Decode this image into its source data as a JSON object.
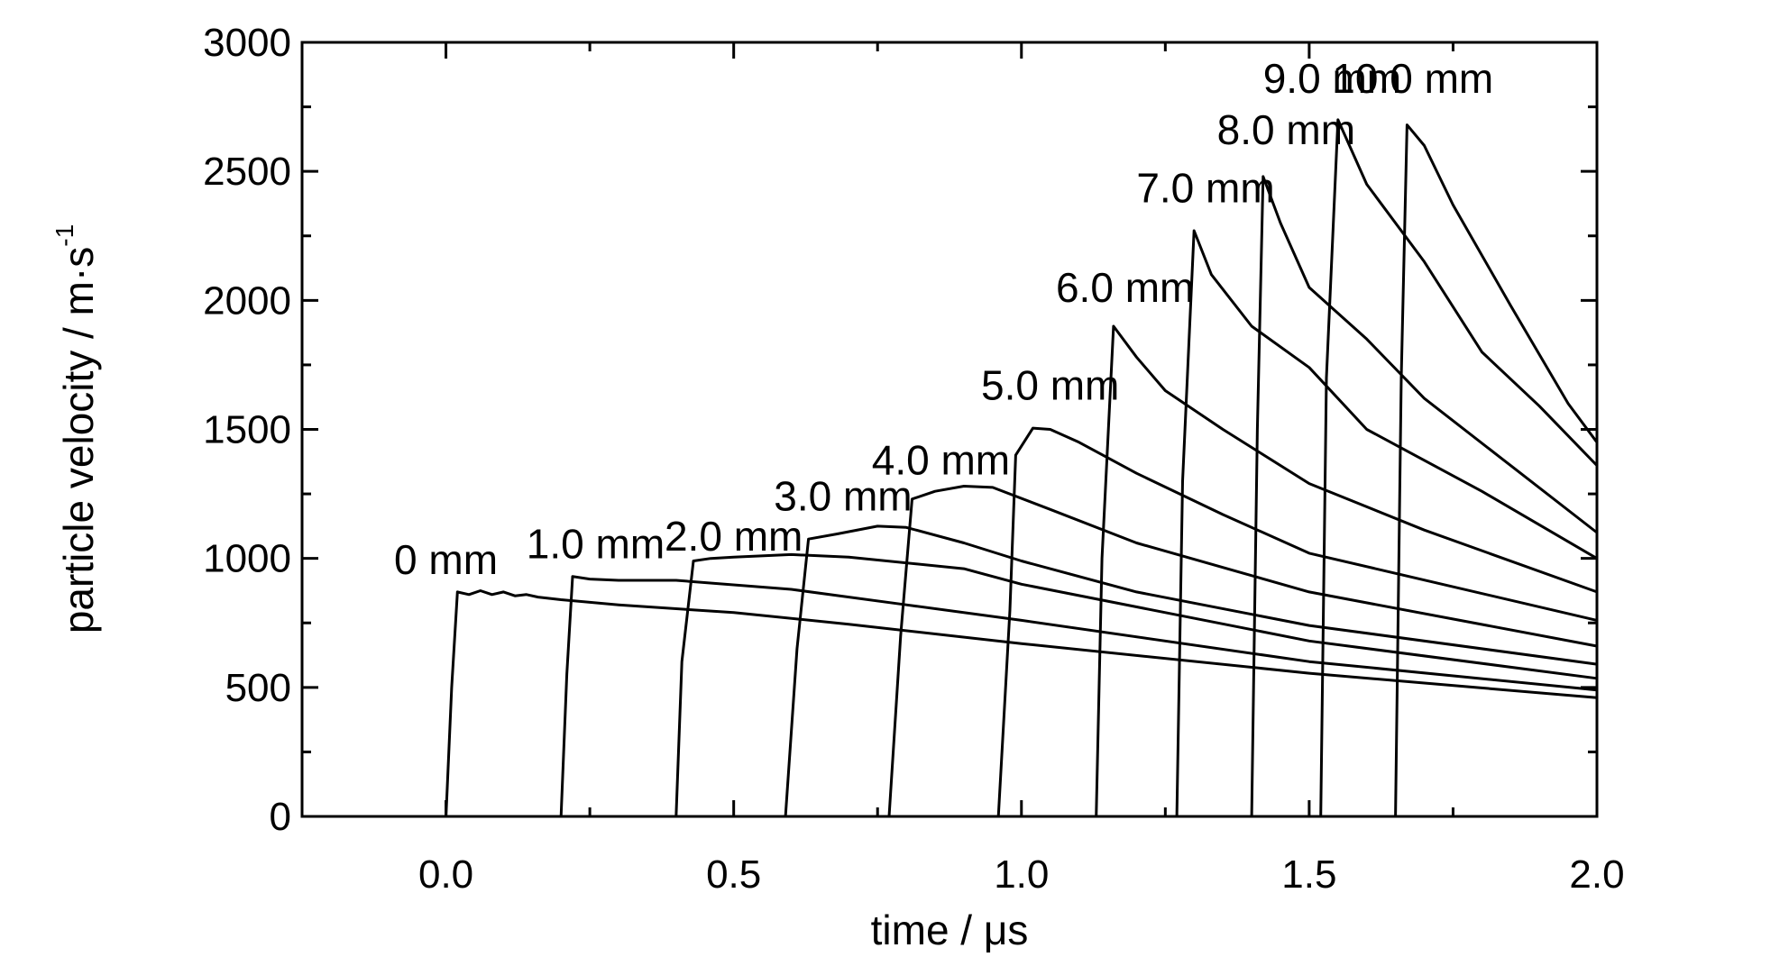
{
  "chart_data": {
    "type": "line",
    "title": "",
    "xlabel": "time / μs",
    "ylabel": "particle velocity / m·s",
    "ylabel_superscript": "-1",
    "xlim": [
      -0.25,
      2.0
    ],
    "ylim": [
      0,
      3000
    ],
    "xticks": [
      0.0,
      0.5,
      1.0,
      1.5,
      2.0
    ],
    "xtick_labels": [
      "0.0",
      "0.5",
      "1.0",
      "1.5",
      "2.0"
    ],
    "yticks": [
      0,
      500,
      1000,
      1500,
      2000,
      2500,
      3000
    ],
    "ytick_labels": [
      "0",
      "500",
      "1000",
      "1500",
      "2000",
      "2500",
      "3000"
    ],
    "grid": false,
    "line_color": "#000000",
    "series": [
      {
        "name": "0 mm",
        "label_at": [
          0.0,
          940
        ],
        "points": [
          [
            -0.25,
            0
          ],
          [
            0.0,
            0
          ],
          [
            0.01,
            500
          ],
          [
            0.02,
            870
          ],
          [
            0.04,
            860
          ],
          [
            0.06,
            875
          ],
          [
            0.08,
            860
          ],
          [
            0.1,
            870
          ],
          [
            0.12,
            855
          ],
          [
            0.14,
            860
          ],
          [
            0.16,
            850
          ],
          [
            0.2,
            840
          ],
          [
            0.3,
            820
          ],
          [
            0.5,
            790
          ],
          [
            0.7,
            745
          ],
          [
            1.0,
            670
          ],
          [
            1.5,
            555
          ],
          [
            2.0,
            460
          ]
        ]
      },
      {
        "name": "1.0 mm",
        "label_at": [
          0.26,
          1000
        ],
        "points": [
          [
            -0.25,
            0
          ],
          [
            0.2,
            0
          ],
          [
            0.21,
            550
          ],
          [
            0.22,
            930
          ],
          [
            0.25,
            920
          ],
          [
            0.3,
            915
          ],
          [
            0.4,
            915
          ],
          [
            0.6,
            880
          ],
          [
            0.8,
            820
          ],
          [
            1.0,
            760
          ],
          [
            1.5,
            600
          ],
          [
            2.0,
            490
          ]
        ]
      },
      {
        "name": "2.0 mm",
        "label_at": [
          0.5,
          1030
        ],
        "points": [
          [
            -0.25,
            0
          ],
          [
            0.4,
            0
          ],
          [
            0.41,
            600
          ],
          [
            0.43,
            990
          ],
          [
            0.46,
            1000
          ],
          [
            0.5,
            1005
          ],
          [
            0.6,
            1015
          ],
          [
            0.7,
            1005
          ],
          [
            0.9,
            960
          ],
          [
            1.0,
            900
          ],
          [
            1.5,
            680
          ],
          [
            2.0,
            535
          ]
        ]
      },
      {
        "name": "3.0 mm",
        "label_at": [
          0.69,
          1185
        ],
        "points": [
          [
            -0.25,
            0
          ],
          [
            0.59,
            0
          ],
          [
            0.61,
            650
          ],
          [
            0.63,
            1075
          ],
          [
            0.68,
            1095
          ],
          [
            0.75,
            1125
          ],
          [
            0.8,
            1120
          ],
          [
            0.9,
            1060
          ],
          [
            1.0,
            990
          ],
          [
            1.2,
            870
          ],
          [
            1.5,
            740
          ],
          [
            2.0,
            590
          ]
        ]
      },
      {
        "name": "4.0 mm",
        "label_at": [
          0.86,
          1325
        ],
        "points": [
          [
            -0.25,
            0
          ],
          [
            0.77,
            0
          ],
          [
            0.79,
            700
          ],
          [
            0.81,
            1230
          ],
          [
            0.85,
            1260
          ],
          [
            0.9,
            1280
          ],
          [
            0.95,
            1275
          ],
          [
            1.05,
            1190
          ],
          [
            1.2,
            1060
          ],
          [
            1.5,
            870
          ],
          [
            2.0,
            660
          ]
        ]
      },
      {
        "name": "5.0 mm",
        "label_at": [
          1.05,
          1615
        ],
        "points": [
          [
            -0.25,
            0
          ],
          [
            0.96,
            0
          ],
          [
            0.98,
            800
          ],
          [
            0.99,
            1400
          ],
          [
            1.02,
            1505
          ],
          [
            1.05,
            1500
          ],
          [
            1.1,
            1450
          ],
          [
            1.2,
            1330
          ],
          [
            1.35,
            1170
          ],
          [
            1.5,
            1020
          ],
          [
            2.0,
            760
          ]
        ]
      },
      {
        "name": "6.0 mm",
        "label_at": [
          1.18,
          1995
        ],
        "points": [
          [
            -0.25,
            0
          ],
          [
            1.13,
            0
          ],
          [
            1.14,
            1000
          ],
          [
            1.16,
            1900
          ],
          [
            1.2,
            1780
          ],
          [
            1.25,
            1650
          ],
          [
            1.35,
            1500
          ],
          [
            1.5,
            1290
          ],
          [
            1.7,
            1110
          ],
          [
            2.0,
            870
          ]
        ]
      },
      {
        "name": "7.0 mm",
        "label_at": [
          1.32,
          2380
        ],
        "points": [
          [
            -0.25,
            0
          ],
          [
            1.27,
            0
          ],
          [
            1.28,
            1300
          ],
          [
            1.3,
            2270
          ],
          [
            1.33,
            2100
          ],
          [
            1.4,
            1900
          ],
          [
            1.5,
            1740
          ],
          [
            1.6,
            1500
          ],
          [
            1.8,
            1260
          ],
          [
            2.0,
            1000
          ]
        ]
      },
      {
        "name": "8.0 mm",
        "label_at": [
          1.46,
          2605
        ],
        "points": [
          [
            -0.25,
            0
          ],
          [
            1.4,
            0
          ],
          [
            1.41,
            1500
          ],
          [
            1.42,
            2480
          ],
          [
            1.45,
            2300
          ],
          [
            1.5,
            2050
          ],
          [
            1.6,
            1850
          ],
          [
            1.7,
            1620
          ],
          [
            1.85,
            1360
          ],
          [
            2.0,
            1100
          ]
        ]
      },
      {
        "name": "9.0 mm",
        "label_at": [
          1.54,
          2805
        ],
        "points": [
          [
            -0.25,
            0
          ],
          [
            1.52,
            0
          ],
          [
            1.53,
            1700
          ],
          [
            1.55,
            2700
          ],
          [
            1.6,
            2450
          ],
          [
            1.7,
            2150
          ],
          [
            1.8,
            1800
          ],
          [
            1.9,
            1590
          ],
          [
            2.0,
            1360
          ]
        ]
      },
      {
        "name": "10.0 mm",
        "label_at": [
          1.68,
          2805
        ],
        "points": [
          [
            -0.25,
            0
          ],
          [
            1.65,
            0
          ],
          [
            1.66,
            1700
          ],
          [
            1.67,
            2680
          ],
          [
            1.7,
            2600
          ],
          [
            1.75,
            2370
          ],
          [
            1.85,
            1980
          ],
          [
            1.95,
            1600
          ],
          [
            2.0,
            1450
          ]
        ]
      }
    ]
  }
}
